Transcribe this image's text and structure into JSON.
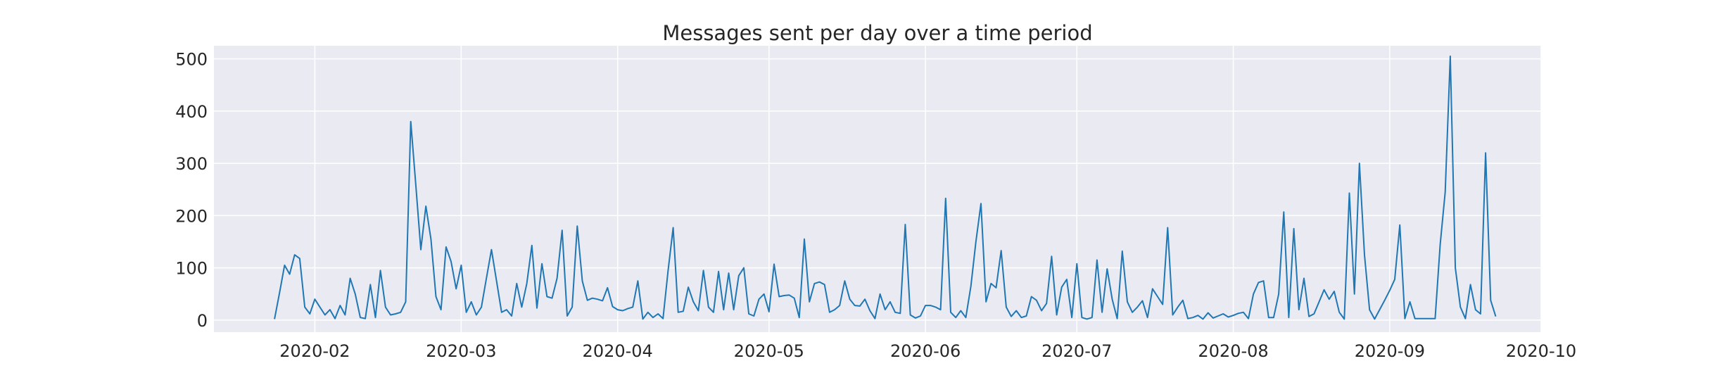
{
  "chart_data": {
    "type": "line",
    "title": "Messages sent per day over a time period",
    "xlabel": "",
    "ylabel": "",
    "x_range": [
      "2020-01-12",
      "2020-10-01"
    ],
    "ylim": [
      -23,
      525
    ],
    "grid": true,
    "background": "#eaeaf2",
    "grid_color": "#ffffff",
    "line_color": "#1f77b4",
    "x_ticks": [
      {
        "date": "2020-02-01",
        "label": "2020-02"
      },
      {
        "date": "2020-03-01",
        "label": "2020-03"
      },
      {
        "date": "2020-04-01",
        "label": "2020-04"
      },
      {
        "date": "2020-05-01",
        "label": "2020-05"
      },
      {
        "date": "2020-06-01",
        "label": "2020-06"
      },
      {
        "date": "2020-07-01",
        "label": "2020-07"
      },
      {
        "date": "2020-08-01",
        "label": "2020-08"
      },
      {
        "date": "2020-09-01",
        "label": "2020-09"
      },
      {
        "date": "2020-10-01",
        "label": "2020-10"
      }
    ],
    "y_ticks": [
      {
        "value": 0,
        "label": "0"
      },
      {
        "value": 100,
        "label": "100"
      },
      {
        "value": 200,
        "label": "200"
      },
      {
        "value": 300,
        "label": "300"
      },
      {
        "value": 400,
        "label": "400"
      },
      {
        "value": 500,
        "label": "500"
      }
    ],
    "series": [
      {
        "name": "",
        "dates": [
          "2020-01-24",
          "2020-01-25",
          "2020-01-26",
          "2020-01-27",
          "2020-01-28",
          "2020-01-29",
          "2020-01-30",
          "2020-01-31",
          "2020-02-01",
          "2020-02-02",
          "2020-02-03",
          "2020-02-04",
          "2020-02-05",
          "2020-02-06",
          "2020-02-07",
          "2020-02-08",
          "2020-02-09",
          "2020-02-10",
          "2020-02-11",
          "2020-02-12",
          "2020-02-13",
          "2020-02-14",
          "2020-02-15",
          "2020-02-16",
          "2020-02-17",
          "2020-02-18",
          "2020-02-19",
          "2020-02-20",
          "2020-02-21",
          "2020-02-22",
          "2020-02-23",
          "2020-02-24",
          "2020-02-25",
          "2020-02-26",
          "2020-02-27",
          "2020-02-28",
          "2020-02-29",
          "2020-03-01",
          "2020-03-02",
          "2020-03-03",
          "2020-03-04",
          "2020-03-05",
          "2020-03-06",
          "2020-03-07",
          "2020-03-08",
          "2020-03-09",
          "2020-03-10",
          "2020-03-11",
          "2020-03-12",
          "2020-03-13",
          "2020-03-14",
          "2020-03-15",
          "2020-03-16",
          "2020-03-17",
          "2020-03-18",
          "2020-03-19",
          "2020-03-20",
          "2020-03-21",
          "2020-03-22",
          "2020-03-23",
          "2020-03-24",
          "2020-03-25",
          "2020-03-26",
          "2020-03-27",
          "2020-03-28",
          "2020-03-29",
          "2020-03-30",
          "2020-03-31",
          "2020-04-01",
          "2020-04-02",
          "2020-04-03",
          "2020-04-04",
          "2020-04-05",
          "2020-04-06",
          "2020-04-07",
          "2020-04-08",
          "2020-04-09",
          "2020-04-10",
          "2020-04-11",
          "2020-04-12",
          "2020-04-13",
          "2020-04-14",
          "2020-04-15",
          "2020-04-16",
          "2020-04-17",
          "2020-04-18",
          "2020-04-19",
          "2020-04-20",
          "2020-04-21",
          "2020-04-22",
          "2020-04-23",
          "2020-04-24",
          "2020-04-25",
          "2020-04-26",
          "2020-04-27",
          "2020-04-28",
          "2020-04-29",
          "2020-04-30",
          "2020-05-01",
          "2020-05-02",
          "2020-05-03",
          "2020-05-04",
          "2020-05-05",
          "2020-05-06",
          "2020-05-07",
          "2020-05-08",
          "2020-05-09",
          "2020-05-10",
          "2020-05-11",
          "2020-05-12",
          "2020-05-13",
          "2020-05-14",
          "2020-05-15",
          "2020-05-16",
          "2020-05-17",
          "2020-05-18",
          "2020-05-19",
          "2020-05-20",
          "2020-05-21",
          "2020-05-22",
          "2020-05-23",
          "2020-05-24",
          "2020-05-25",
          "2020-05-26",
          "2020-05-27",
          "2020-05-28",
          "2020-05-29",
          "2020-05-30",
          "2020-05-31",
          "2020-06-01",
          "2020-06-02",
          "2020-06-03",
          "2020-06-04",
          "2020-06-05",
          "2020-06-06",
          "2020-06-07",
          "2020-06-08",
          "2020-06-09",
          "2020-06-10",
          "2020-06-11",
          "2020-06-12",
          "2020-06-13",
          "2020-06-14",
          "2020-06-15",
          "2020-06-16",
          "2020-06-17",
          "2020-06-18",
          "2020-06-19",
          "2020-06-20",
          "2020-06-21",
          "2020-06-22",
          "2020-06-23",
          "2020-06-24",
          "2020-06-25",
          "2020-06-26",
          "2020-06-27",
          "2020-06-28",
          "2020-06-29",
          "2020-06-30",
          "2020-07-01",
          "2020-07-02",
          "2020-07-03",
          "2020-07-04",
          "2020-07-05",
          "2020-07-06",
          "2020-07-07",
          "2020-07-08",
          "2020-07-09",
          "2020-07-10",
          "2020-07-11",
          "2020-07-12",
          "2020-07-13",
          "2020-07-14",
          "2020-07-15",
          "2020-07-16",
          "2020-07-17",
          "2020-07-18",
          "2020-07-19",
          "2020-07-20",
          "2020-07-21",
          "2020-07-22",
          "2020-07-23",
          "2020-07-24",
          "2020-07-25",
          "2020-07-26",
          "2020-07-27",
          "2020-07-28",
          "2020-07-29",
          "2020-07-30",
          "2020-07-31",
          "2020-08-01",
          "2020-08-02",
          "2020-08-03",
          "2020-08-04",
          "2020-08-05",
          "2020-08-06",
          "2020-08-07",
          "2020-08-08",
          "2020-08-09",
          "2020-08-10",
          "2020-08-11",
          "2020-08-12",
          "2020-08-13",
          "2020-08-14",
          "2020-08-15",
          "2020-08-16",
          "2020-08-17",
          "2020-08-18",
          "2020-08-19",
          "2020-08-20",
          "2020-08-21",
          "2020-08-22",
          "2020-08-23",
          "2020-08-24",
          "2020-08-25",
          "2020-08-26",
          "2020-08-27",
          "2020-08-28",
          "2020-08-29",
          "2020-08-30",
          "2020-08-31",
          "2020-09-01",
          "2020-09-02",
          "2020-09-03",
          "2020-09-04",
          "2020-09-05",
          "2020-09-06",
          "2020-09-07",
          "2020-09-08",
          "2020-09-09",
          "2020-09-10",
          "2020-09-11",
          "2020-09-12",
          "2020-09-13",
          "2020-09-14",
          "2020-09-15",
          "2020-09-16",
          "2020-09-17",
          "2020-09-18",
          "2020-09-19",
          "2020-09-20",
          "2020-09-21",
          "2020-09-22"
        ],
        "values": [
          2,
          52,
          105,
          88,
          125,
          118,
          25,
          12,
          40,
          25,
          10,
          20,
          3,
          28,
          10,
          80,
          50,
          5,
          3,
          68,
          5,
          95,
          25,
          10,
          12,
          15,
          35,
          380,
          260,
          135,
          218,
          155,
          45,
          20,
          140,
          112,
          60,
          105,
          15,
          35,
          10,
          25,
          80,
          135,
          75,
          15,
          20,
          8,
          70,
          25,
          70,
          143,
          23,
          108,
          45,
          42,
          80,
          172,
          8,
          25,
          180,
          75,
          38,
          42,
          40,
          37,
          62,
          26,
          20,
          18,
          22,
          25,
          75,
          2,
          15,
          5,
          12,
          3,
          95,
          177,
          15,
          17,
          63,
          35,
          18,
          95,
          25,
          15,
          93,
          20,
          90,
          20,
          85,
          100,
          12,
          8,
          40,
          50,
          16,
          107,
          45,
          47,
          48,
          42,
          5,
          155,
          35,
          70,
          73,
          68,
          15,
          20,
          28,
          75,
          40,
          28,
          27,
          40,
          18,
          3,
          50,
          20,
          35,
          15,
          13,
          183,
          10,
          4,
          8,
          28,
          28,
          25,
          20,
          233,
          15,
          5,
          18,
          5,
          65,
          150,
          223,
          35,
          70,
          62,
          133,
          25,
          7,
          18,
          5,
          8,
          45,
          38,
          18,
          32,
          122,
          10,
          63,
          78,
          5,
          108,
          5,
          2,
          5,
          115,
          15,
          98,
          40,
          3,
          132,
          35,
          15,
          25,
          37,
          5,
          60,
          45,
          30,
          177,
          10,
          25,
          38,
          3,
          5,
          9,
          2,
          14,
          4,
          8,
          12,
          6,
          9,
          13,
          15,
          3,
          50,
          72,
          75,
          5,
          5,
          50,
          207,
          5,
          175,
          20,
          80,
          7,
          12,
          35,
          58,
          40,
          55,
          15,
          2,
          243,
          50,
          300,
          125,
          20,
          2,
          20,
          38,
          57,
          78,
          182,
          3,
          35,
          3,
          3,
          3,
          3,
          3,
          145,
          245,
          505,
          100,
          25,
          3,
          68,
          20,
          12,
          320,
          38,
          7
        ]
      }
    ]
  }
}
